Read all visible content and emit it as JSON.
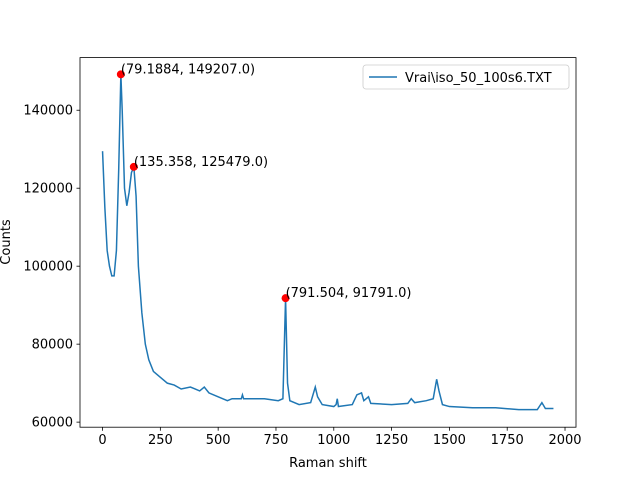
{
  "chart_data": {
    "type": "line",
    "xlabel": "Raman shift",
    "ylabel": "Counts",
    "xlim": [
      -97.5,
      2047.5
    ],
    "ylim": [
      58700,
      153500
    ],
    "xticks": [
      0,
      250,
      500,
      750,
      1000,
      1250,
      1500,
      1750,
      2000
    ],
    "yticks": [
      60000,
      80000,
      100000,
      120000,
      140000
    ],
    "legend": "upper right",
    "x": [
      0,
      10,
      20,
      30,
      40,
      50,
      60,
      70,
      79.1884,
      85,
      95,
      105,
      115,
      125,
      135.358,
      145,
      155,
      170,
      185,
      200,
      220,
      250,
      280,
      310,
      340,
      380,
      400,
      420,
      440,
      460,
      500,
      540,
      560,
      600,
      605,
      610,
      700,
      760,
      780,
      791.504,
      800,
      810,
      850,
      900,
      920,
      930,
      950,
      1000,
      1010,
      1015,
      1020,
      1080,
      1100,
      1120,
      1130,
      1150,
      1160,
      1250,
      1320,
      1335,
      1350,
      1400,
      1430,
      1445,
      1455,
      1470,
      1500,
      1600,
      1700,
      1800,
      1880,
      1900,
      1915,
      1950
    ],
    "series": [
      {
        "name": "Vrai\\iso_50_100s6.TXT",
        "color": "#1f77b4",
        "values": [
          129500,
          115000,
          104000,
          100000,
          97500,
          97500,
          104000,
          125000,
          149207,
          140000,
          120000,
          115500,
          119000,
          124000,
          125479,
          118000,
          100000,
          88000,
          80000,
          76000,
          73000,
          71500,
          70000,
          69500,
          68500,
          69000,
          68500,
          68000,
          69000,
          67500,
          66500,
          65500,
          66000,
          66000,
          67000,
          66000,
          66000,
          65500,
          66000,
          91791,
          70000,
          65500,
          64500,
          65000,
          69000,
          66500,
          64500,
          64000,
          64500,
          66000,
          64000,
          64500,
          67000,
          67500,
          65500,
          66500,
          64800,
          64500,
          64800,
          66000,
          65000,
          65500,
          66000,
          71000,
          68000,
          64500,
          64000,
          63700,
          63700,
          63200,
          63200,
          65000,
          63500,
          63500
        ]
      }
    ],
    "marker_color": "#ff0000",
    "annotations": [
      {
        "text": "(79.1884, 149207.0)",
        "x": 79.1884,
        "y": 149207
      },
      {
        "text": "(135.358, 125479.0)",
        "x": 135.358,
        "y": 125479
      },
      {
        "text": "(791.504, 91791.0)",
        "x": 791.504,
        "y": 91791
      }
    ]
  }
}
